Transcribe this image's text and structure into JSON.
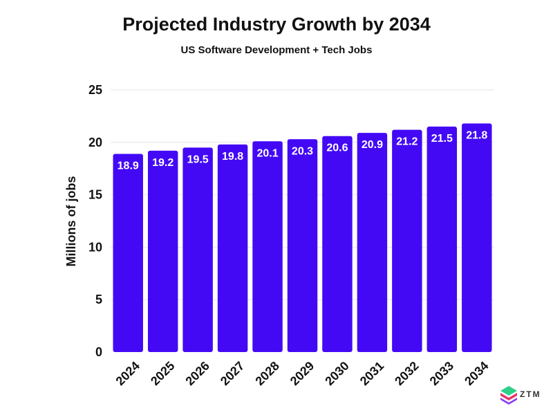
{
  "chart_data": {
    "type": "bar",
    "title": "Projected Industry Growth by 2034",
    "subtitle": "US Software Development + Tech Jobs",
    "categories": [
      "2024",
      "2025",
      "2026",
      "2027",
      "2028",
      "2029",
      "2030",
      "2031",
      "2032",
      "2033",
      "2034"
    ],
    "values": [
      18.9,
      19.2,
      19.5,
      19.8,
      20.1,
      20.3,
      20.6,
      20.9,
      21.2,
      21.5,
      21.8
    ],
    "data_labels": [
      "18.9",
      "19.2",
      "19.5",
      "19.8",
      "20.1",
      "20.3",
      "20.6",
      "20.9",
      "21.2",
      "21.5",
      "21.8"
    ],
    "xlabel": "",
    "ylabel": "Millions of jobs",
    "ylim": [
      0,
      25
    ],
    "yticks": [
      0,
      5,
      10,
      15,
      20,
      25
    ],
    "grid": true,
    "bar_color": "#4309f5",
    "grid_color": "#e6e6e6"
  },
  "logo": {
    "text": "ZTM"
  }
}
